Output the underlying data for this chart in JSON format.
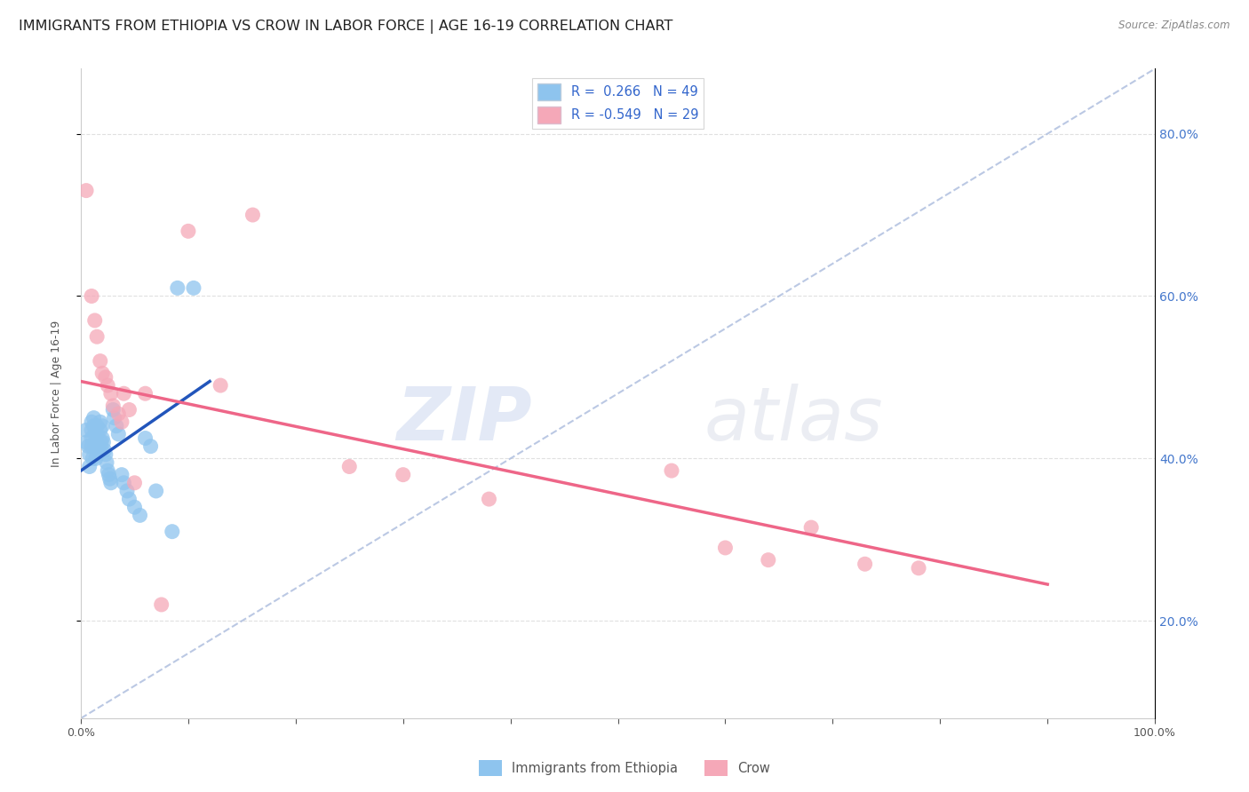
{
  "title": "IMMIGRANTS FROM ETHIOPIA VS CROW IN LABOR FORCE | AGE 16-19 CORRELATION CHART",
  "source": "Source: ZipAtlas.com",
  "ylabel": "In Labor Force | Age 16-19",
  "xlim": [
    0.0,
    1.0
  ],
  "ylim": [
    0.08,
    0.88
  ],
  "x_ticks": [
    0.0,
    0.1,
    0.2,
    0.3,
    0.4,
    0.5,
    0.6,
    0.7,
    0.8,
    0.9,
    1.0
  ],
  "y_ticks": [
    0.2,
    0.4,
    0.6,
    0.8
  ],
  "right_y_tick_labels": [
    "20.0%",
    "40.0%",
    "60.0%",
    "80.0%"
  ],
  "legend_r_ethiopia": "0.266",
  "legend_n_ethiopia": "49",
  "legend_r_crow": "-0.549",
  "legend_n_crow": "29",
  "ethiopia_color": "#8EC4EE",
  "crow_color": "#F5A8B8",
  "ethiopia_line_color": "#2255BB",
  "crow_line_color": "#EE6688",
  "dashed_line_color": "#AABBDD",
  "watermark_zip": "ZIP",
  "watermark_atlas": "atlas",
  "ethiopia_x": [
    0.005,
    0.005,
    0.007,
    0.008,
    0.008,
    0.01,
    0.01,
    0.01,
    0.01,
    0.011,
    0.012,
    0.012,
    0.013,
    0.013,
    0.014,
    0.015,
    0.015,
    0.015,
    0.016,
    0.017,
    0.018,
    0.018,
    0.019,
    0.02,
    0.02,
    0.021,
    0.022,
    0.023,
    0.024,
    0.025,
    0.026,
    0.027,
    0.028,
    0.03,
    0.031,
    0.033,
    0.035,
    0.038,
    0.04,
    0.043,
    0.045,
    0.05,
    0.055,
    0.06,
    0.065,
    0.07,
    0.085,
    0.09,
    0.105
  ],
  "ethiopia_y": [
    0.435,
    0.42,
    0.415,
    0.405,
    0.39,
    0.445,
    0.435,
    0.425,
    0.415,
    0.4,
    0.45,
    0.44,
    0.43,
    0.415,
    0.4,
    0.44,
    0.43,
    0.42,
    0.415,
    0.41,
    0.445,
    0.435,
    0.42,
    0.44,
    0.425,
    0.42,
    0.41,
    0.405,
    0.395,
    0.385,
    0.38,
    0.375,
    0.37,
    0.46,
    0.45,
    0.44,
    0.43,
    0.38,
    0.37,
    0.36,
    0.35,
    0.34,
    0.33,
    0.425,
    0.415,
    0.36,
    0.31,
    0.61,
    0.61
  ],
  "crow_x": [
    0.005,
    0.01,
    0.013,
    0.015,
    0.018,
    0.02,
    0.023,
    0.025,
    0.028,
    0.03,
    0.035,
    0.038,
    0.04,
    0.045,
    0.05,
    0.06,
    0.075,
    0.1,
    0.13,
    0.16,
    0.25,
    0.3,
    0.38,
    0.55,
    0.6,
    0.64,
    0.68,
    0.73,
    0.78
  ],
  "crow_y": [
    0.73,
    0.6,
    0.57,
    0.55,
    0.52,
    0.505,
    0.5,
    0.49,
    0.48,
    0.465,
    0.455,
    0.445,
    0.48,
    0.46,
    0.37,
    0.48,
    0.22,
    0.68,
    0.49,
    0.7,
    0.39,
    0.38,
    0.35,
    0.385,
    0.29,
    0.275,
    0.315,
    0.27,
    0.265
  ],
  "ethiopia_trend_x": [
    0.0,
    0.12
  ],
  "ethiopia_trend_y": [
    0.385,
    0.495
  ],
  "crow_trend_x": [
    0.0,
    0.9
  ],
  "crow_trend_y": [
    0.495,
    0.245
  ],
  "dashed_trend_x": [
    0.0,
    1.0
  ],
  "dashed_trend_y": [
    0.08,
    0.88
  ],
  "background_color": "#FFFFFF",
  "grid_color": "#DDDDDD",
  "title_fontsize": 11.5,
  "axis_fontsize": 9,
  "label_fontsize": 9
}
